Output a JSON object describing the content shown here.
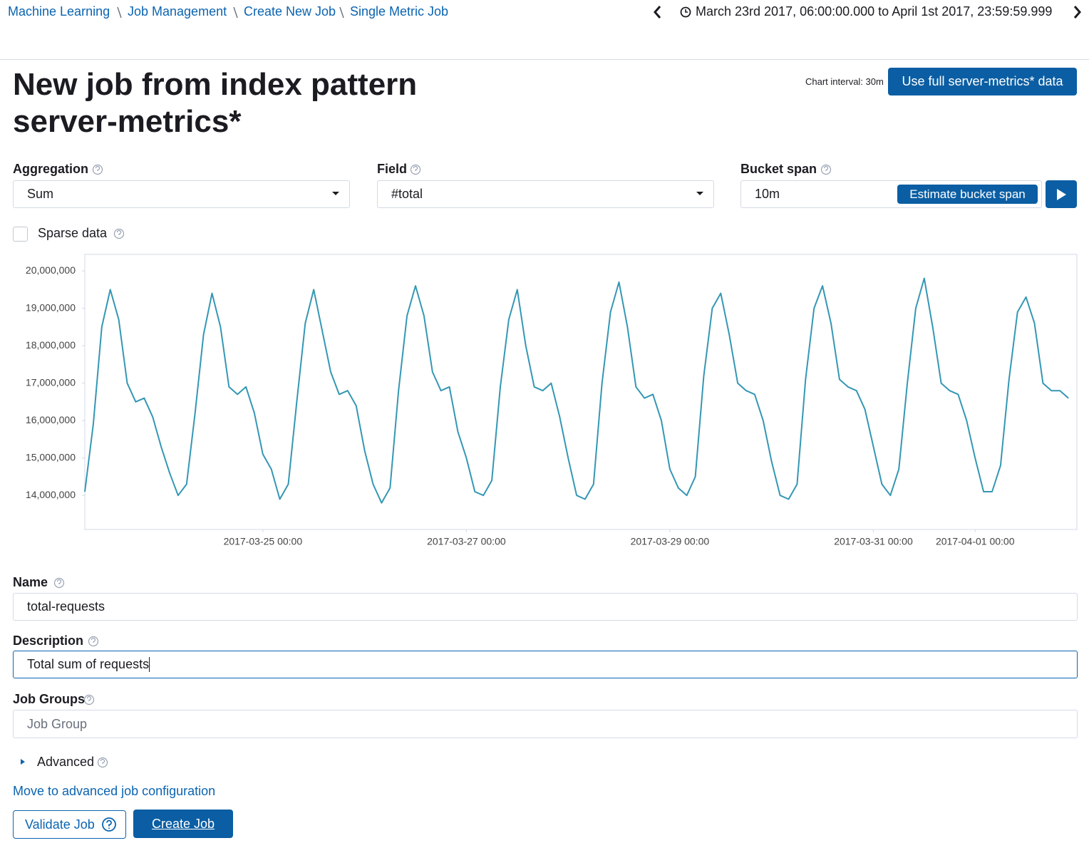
{
  "breadcrumbs": [
    "Machine Learning",
    "Job Management",
    "Create New Job",
    "Single Metric Job"
  ],
  "time_range": "March 23rd 2017, 06:00:00.000 to April 1st 2017, 23:59:59.999",
  "title": "New job from index pattern server-metrics*",
  "chart_interval": "Chart interval: 30m",
  "use_full_button": "Use full server-metrics* data",
  "aggregation": {
    "label": "Aggregation",
    "value": "Sum"
  },
  "field": {
    "label": "Field",
    "value": "#total"
  },
  "bucket_span": {
    "label": "Bucket span",
    "value": "10m",
    "button": "Estimate bucket span"
  },
  "sparse_data": "Sparse data",
  "name": {
    "label": "Name",
    "value": "total-requests"
  },
  "description": {
    "label": "Description",
    "value": "Total sum of requests"
  },
  "job_groups": {
    "label": "Job Groups",
    "placeholder": "Job Group"
  },
  "advanced": "Advanced",
  "advanced_link": "Move to advanced job configuration",
  "validate_button": "Validate Job",
  "create_button": "Create Job",
  "chart_data": {
    "type": "line",
    "color": "#3497b4",
    "grid": false,
    "xlim": [
      "2017-03-23 06:00",
      "2017-04-02 00:00"
    ],
    "xticks": [
      "2017-03-25 00:00",
      "2017-03-27 00:00",
      "2017-03-29 00:00",
      "2017-03-31 00:00",
      "2017-04-01 00:00"
    ],
    "ylim": [
      13090000,
      20440000
    ],
    "yticks": [
      {
        "value": 14000000,
        "label": "14,000,000"
      },
      {
        "value": 15000000,
        "label": "15,000,000"
      },
      {
        "value": 16000000,
        "label": "16,000,000"
      },
      {
        "value": 17000000,
        "label": "17,000,000"
      },
      {
        "value": 18000000,
        "label": "18,000,000"
      },
      {
        "value": 19000000,
        "label": "19,000,000"
      },
      {
        "value": 20000000,
        "label": "20,000,000"
      }
    ],
    "x": [
      "2017-03-23 06:00",
      "2017-03-23 08:00",
      "2017-03-23 10:00",
      "2017-03-23 12:00",
      "2017-03-23 14:00",
      "2017-03-23 16:00",
      "2017-03-23 18:00",
      "2017-03-23 20:00",
      "2017-03-23 22:00",
      "2017-03-24 00:00",
      "2017-03-24 02:00",
      "2017-03-24 04:00",
      "2017-03-24 06:00",
      "2017-03-24 08:00",
      "2017-03-24 10:00",
      "2017-03-24 12:00",
      "2017-03-24 14:00",
      "2017-03-24 16:00",
      "2017-03-24 18:00",
      "2017-03-24 20:00",
      "2017-03-24 22:00",
      "2017-03-25 00:00",
      "2017-03-25 02:00",
      "2017-03-25 04:00",
      "2017-03-25 06:00",
      "2017-03-25 08:00",
      "2017-03-25 10:00",
      "2017-03-25 12:00",
      "2017-03-25 14:00",
      "2017-03-25 16:00",
      "2017-03-25 18:00",
      "2017-03-25 20:00",
      "2017-03-25 22:00",
      "2017-03-26 00:00",
      "2017-03-26 02:00",
      "2017-03-26 04:00",
      "2017-03-26 06:00",
      "2017-03-26 08:00",
      "2017-03-26 10:00",
      "2017-03-26 12:00",
      "2017-03-26 14:00",
      "2017-03-26 16:00",
      "2017-03-26 18:00",
      "2017-03-26 20:00",
      "2017-03-26 22:00",
      "2017-03-27 00:00",
      "2017-03-27 02:00",
      "2017-03-27 04:00",
      "2017-03-27 06:00",
      "2017-03-27 08:00",
      "2017-03-27 10:00",
      "2017-03-27 12:00",
      "2017-03-27 14:00",
      "2017-03-27 16:00",
      "2017-03-27 18:00",
      "2017-03-27 20:00",
      "2017-03-27 22:00",
      "2017-03-28 00:00",
      "2017-03-28 02:00",
      "2017-03-28 04:00",
      "2017-03-28 06:00",
      "2017-03-28 08:00",
      "2017-03-28 10:00",
      "2017-03-28 12:00",
      "2017-03-28 14:00",
      "2017-03-28 16:00",
      "2017-03-28 18:00",
      "2017-03-28 20:00",
      "2017-03-28 22:00",
      "2017-03-29 00:00",
      "2017-03-29 02:00",
      "2017-03-29 04:00",
      "2017-03-29 06:00",
      "2017-03-29 08:00",
      "2017-03-29 10:00",
      "2017-03-29 12:00",
      "2017-03-29 14:00",
      "2017-03-29 16:00",
      "2017-03-29 18:00",
      "2017-03-29 20:00",
      "2017-03-29 22:00",
      "2017-03-30 00:00",
      "2017-03-30 02:00",
      "2017-03-30 04:00",
      "2017-03-30 06:00",
      "2017-03-30 08:00",
      "2017-03-30 10:00",
      "2017-03-30 12:00",
      "2017-03-30 14:00",
      "2017-03-30 16:00",
      "2017-03-30 18:00",
      "2017-03-30 20:00",
      "2017-03-30 22:00",
      "2017-03-31 00:00",
      "2017-03-31 02:00",
      "2017-03-31 04:00",
      "2017-03-31 06:00",
      "2017-03-31 08:00",
      "2017-03-31 10:00",
      "2017-03-31 12:00",
      "2017-03-31 14:00",
      "2017-03-31 16:00",
      "2017-03-31 18:00",
      "2017-03-31 20:00",
      "2017-03-31 22:00",
      "2017-04-01 00:00",
      "2017-04-01 02:00",
      "2017-04-01 04:00",
      "2017-04-01 06:00",
      "2017-04-01 08:00",
      "2017-04-01 10:00",
      "2017-04-01 12:00",
      "2017-04-01 14:00",
      "2017-04-01 16:00",
      "2017-04-01 18:00",
      "2017-04-01 20:00",
      "2017-04-01 22:00"
    ],
    "values": [
      14100000,
      15900000,
      18500000,
      19500000,
      18700000,
      17000000,
      16500000,
      16600000,
      16100000,
      15300000,
      14600000,
      14000000,
      14300000,
      16200000,
      18300000,
      19400000,
      18500000,
      16900000,
      16700000,
      16900000,
      16200000,
      15100000,
      14700000,
      13900000,
      14300000,
      16500000,
      18600000,
      19500000,
      18400000,
      17300000,
      16700000,
      16800000,
      16400000,
      15200000,
      14300000,
      13800000,
      14200000,
      16800000,
      18800000,
      19600000,
      18800000,
      17300000,
      16800000,
      16900000,
      15700000,
      15000000,
      14100000,
      14000000,
      14400000,
      16900000,
      18700000,
      19500000,
      18000000,
      16900000,
      16800000,
      17000000,
      16100000,
      15000000,
      14000000,
      13900000,
      14300000,
      17000000,
      18900000,
      19700000,
      18500000,
      16900000,
      16600000,
      16700000,
      16000000,
      14700000,
      14200000,
      14000000,
      14500000,
      17200000,
      19000000,
      19400000,
      18300000,
      17000000,
      16800000,
      16700000,
      16000000,
      14900000,
      14000000,
      13900000,
      14300000,
      17100000,
      19000000,
      19600000,
      18600000,
      17100000,
      16900000,
      16800000,
      16300000,
      15300000,
      14300000,
      14000000,
      14700000,
      17000000,
      19000000,
      19800000,
      18500000,
      17000000,
      16800000,
      16700000,
      16000000,
      15000000,
      14100000,
      14100000,
      14800000,
      17100000,
      18900000,
      19300000,
      18600000,
      17000000,
      16800000,
      16800000,
      16600000
    ]
  }
}
